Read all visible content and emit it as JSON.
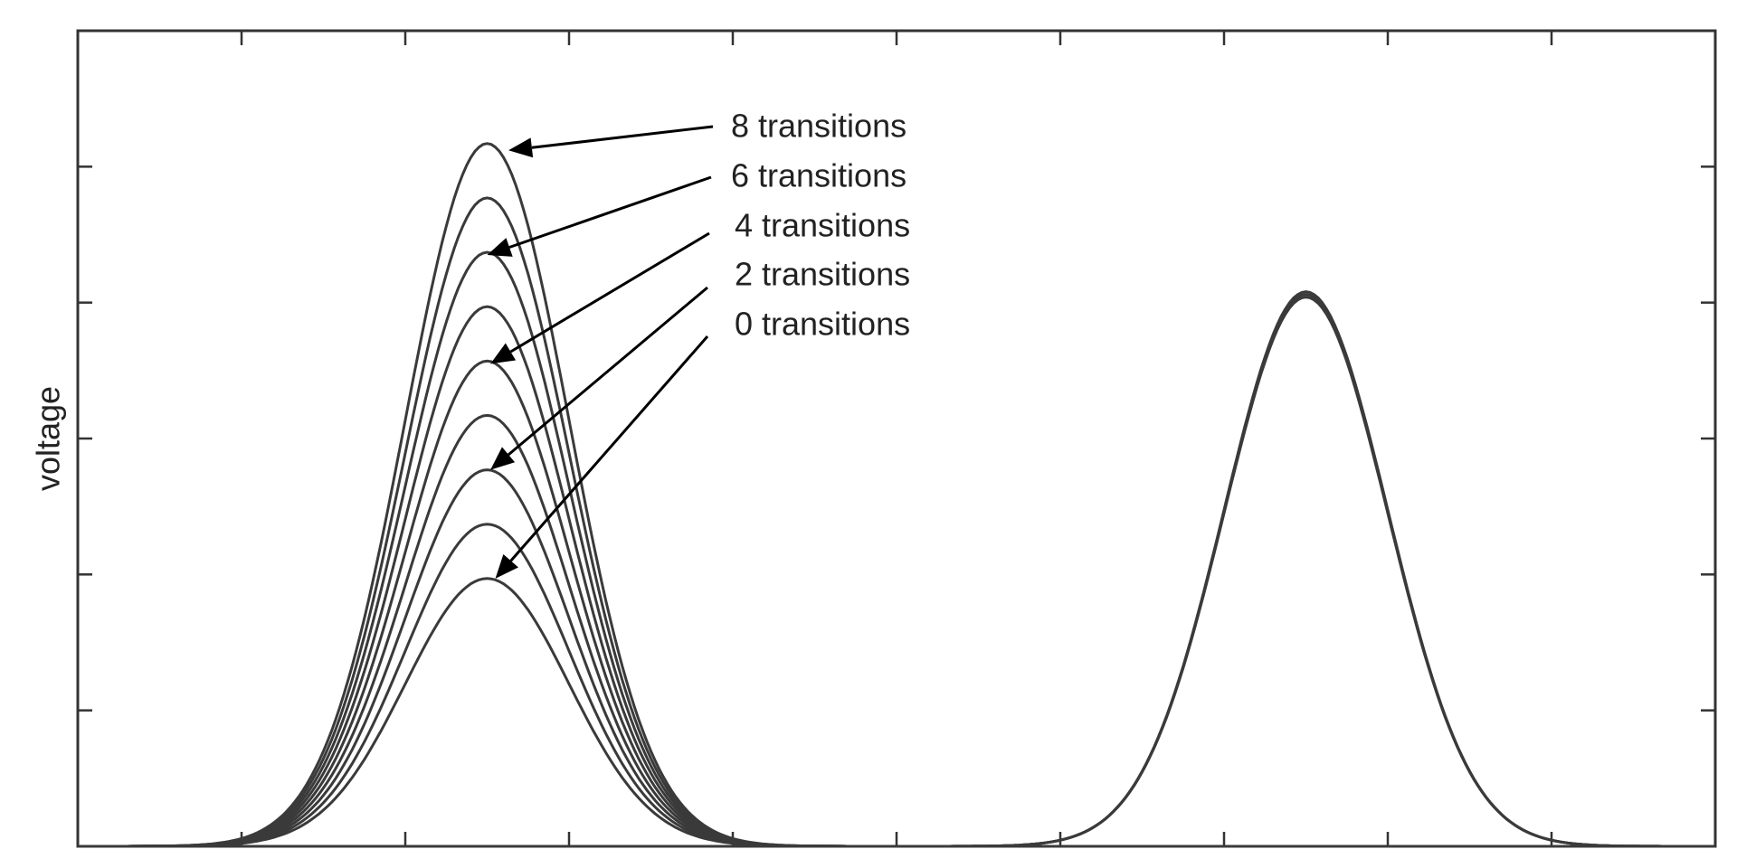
{
  "chart_data": {
    "type": "line",
    "xlabel": "",
    "ylabel": "voltage",
    "xlim": [
      0,
      10
    ],
    "ylim": [
      0,
      6
    ],
    "x_ticks": [
      1,
      2,
      3,
      4,
      5,
      6,
      7,
      8,
      9
    ],
    "y_ticks": [
      1,
      2,
      3,
      4,
      5
    ],
    "grid": false,
    "series": [
      {
        "center": 2.5,
        "width": 0.5,
        "peak": 1.97
      },
      {
        "center": 2.5,
        "width": 0.5,
        "peak": 2.37
      },
      {
        "center": 2.5,
        "width": 0.5,
        "peak": 2.77
      },
      {
        "center": 2.5,
        "width": 0.5,
        "peak": 3.17
      },
      {
        "center": 2.5,
        "width": 0.5,
        "peak": 3.57
      },
      {
        "center": 2.5,
        "width": 0.5,
        "peak": 3.97
      },
      {
        "center": 2.5,
        "width": 0.5,
        "peak": 4.37
      },
      {
        "center": 2.5,
        "width": 0.5,
        "peak": 4.77
      },
      {
        "center": 2.5,
        "width": 0.5,
        "peak": 5.17
      },
      {
        "center": 7.5,
        "width": 0.5,
        "peak": 4.08
      },
      {
        "center": 7.5,
        "width": 0.5,
        "peak": 4.06
      },
      {
        "center": 7.5,
        "width": 0.5,
        "peak": 4.04
      }
    ],
    "annotations": [
      {
        "text": "8 transitions",
        "x": 2.63,
        "y": 5.12
      },
      {
        "text": "6 transitions",
        "x": 2.5,
        "y": 4.35
      },
      {
        "text": "4 transitions",
        "x": 2.52,
        "y": 3.55
      },
      {
        "text": "2 transitions",
        "x": 2.52,
        "y": 2.77
      },
      {
        "text": "0 transitions",
        "x": 2.55,
        "y": 1.97
      }
    ]
  }
}
